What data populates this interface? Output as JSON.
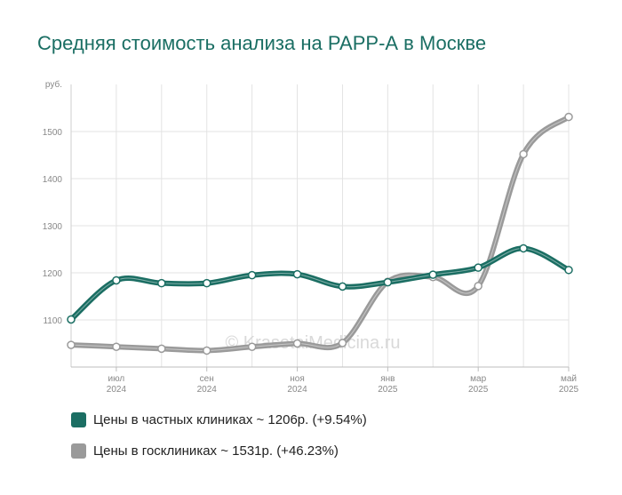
{
  "chart_data": {
    "type": "line",
    "title": "Средняя стоимость анализа на РАРР-А в Москве",
    "y_unit": "руб.",
    "ylim": [
      1000,
      1600
    ],
    "y_ticks": [
      1100,
      1200,
      1300,
      1400,
      1500
    ],
    "x_ticks": [
      {
        "month": "июл",
        "year": "2024"
      },
      {
        "month": "сен",
        "year": "2024"
      },
      {
        "month": "ноя",
        "year": "2024"
      },
      {
        "month": "янв",
        "year": "2025"
      },
      {
        "month": "мар",
        "year": "2025"
      },
      {
        "month": "май",
        "year": "2025"
      }
    ],
    "x": [
      "2024-06",
      "2024-07",
      "2024-08",
      "2024-09",
      "2024-10",
      "2024-11",
      "2024-12",
      "2025-01",
      "2025-02",
      "2025-03",
      "2025-04",
      "2025-05"
    ],
    "series": [
      {
        "name": "Цены в частных клиниках",
        "legend": "Цены в частных клиниках ~ 1206р. (+9.54%)",
        "color": "#1b6e63",
        "values": [
          1101,
          1184,
          1178,
          1178,
          1195,
          1197,
          1171,
          1180,
          1196,
          1211,
          1252,
          1206
        ]
      },
      {
        "name": "Цены в госклиниках",
        "legend": "Цены в госклиниках ~ 1531р. (+46.23%)",
        "color": "#9a9a9a",
        "values": [
          1047,
          1043,
          1039,
          1035,
          1043,
          1050,
          1051,
          1181,
          1191,
          1172,
          1452,
          1531
        ]
      }
    ],
    "grid": true,
    "legend_position": "bottom-left",
    "watermark": "© KrasotaiMedicina.ru"
  }
}
